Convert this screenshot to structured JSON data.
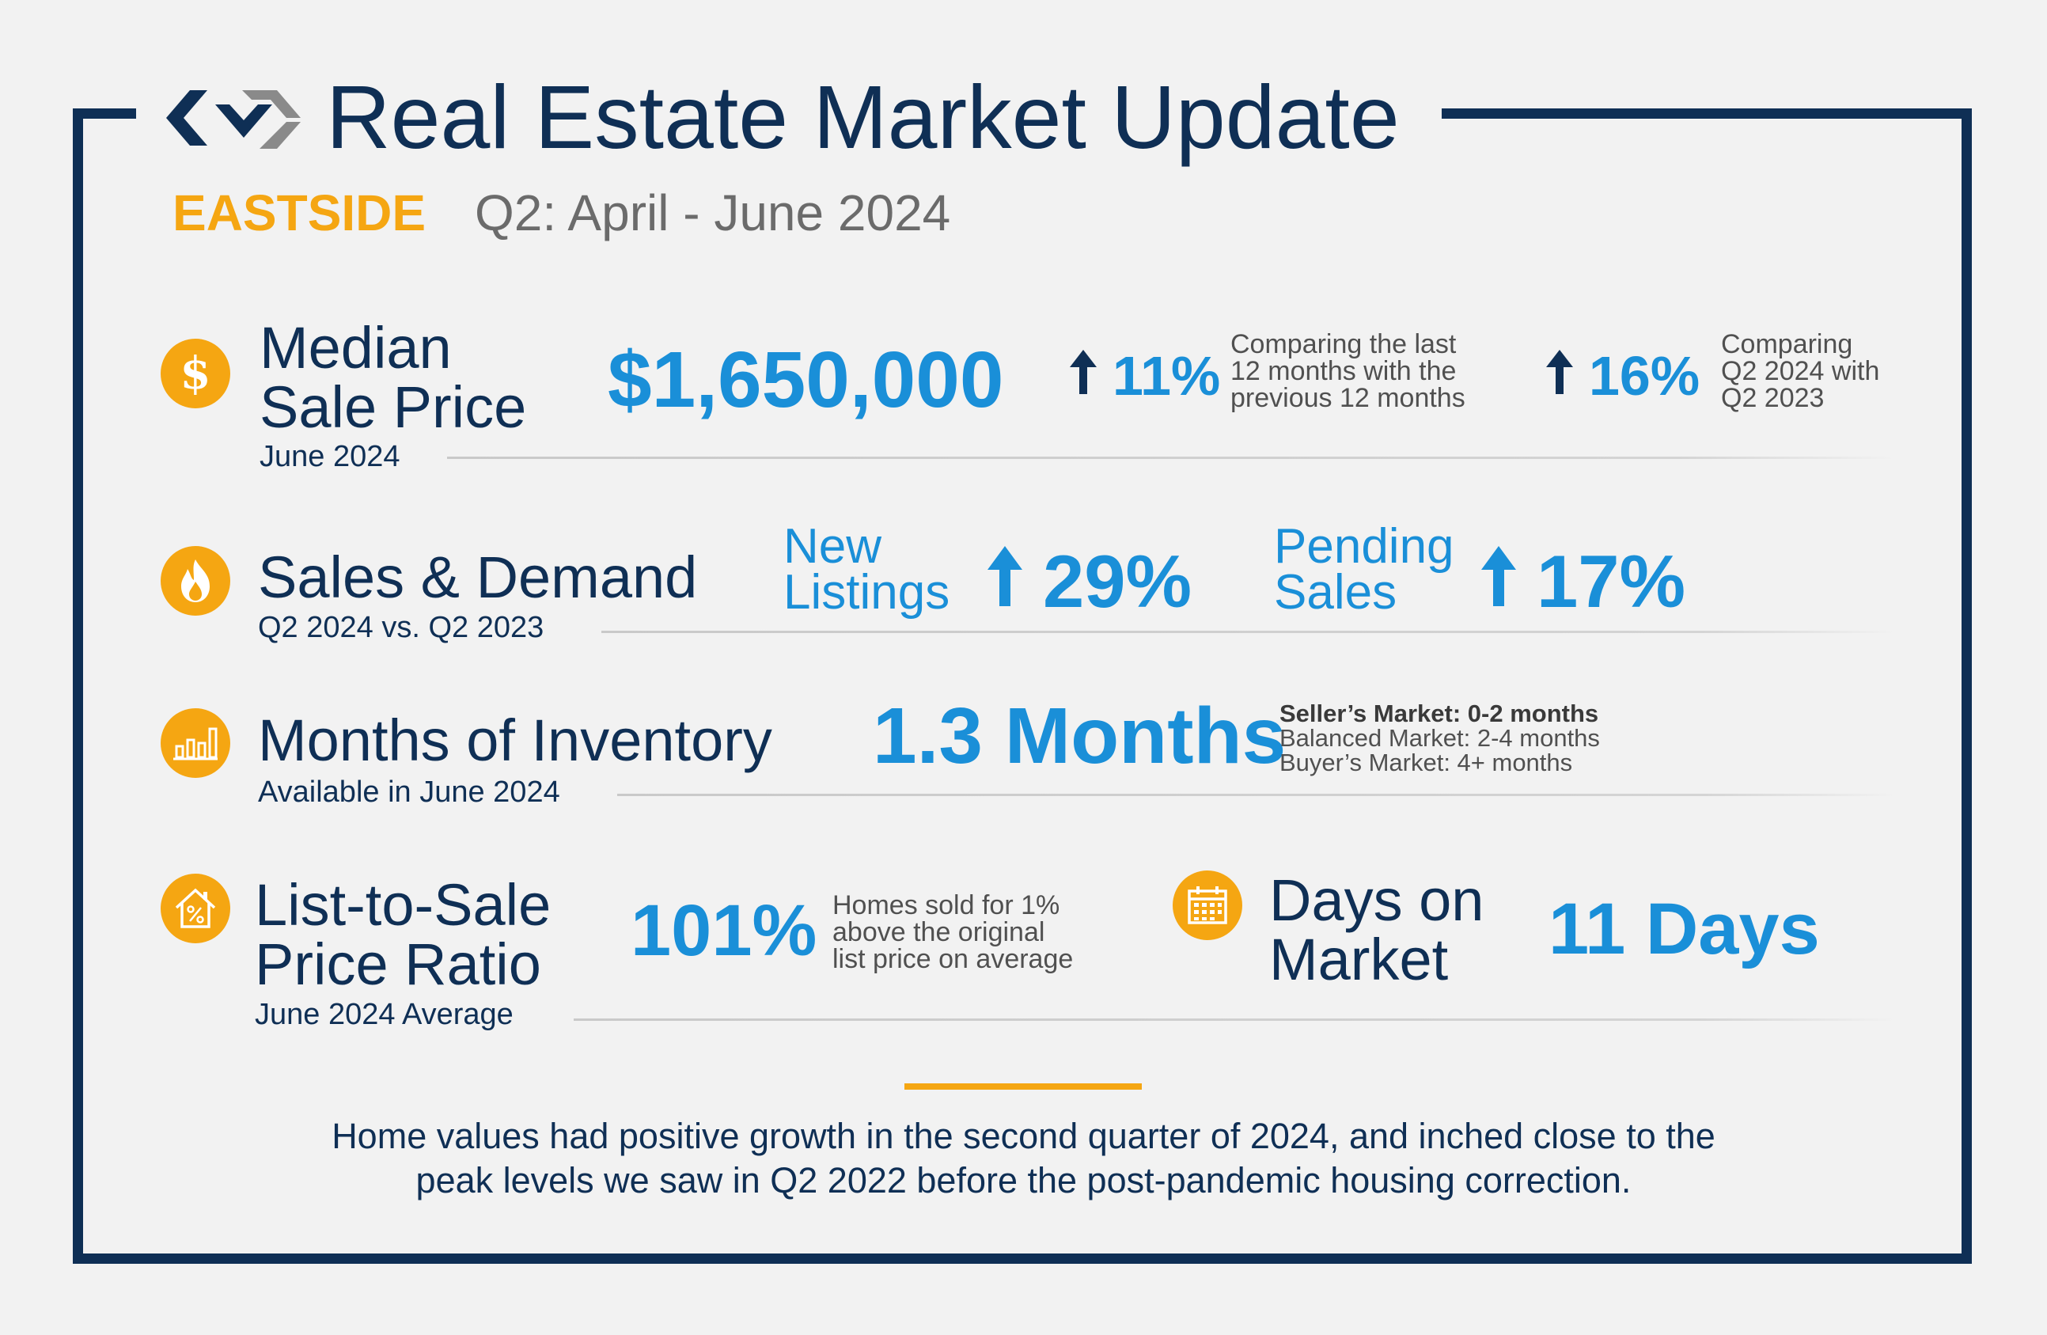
{
  "header": {
    "title": "Real Estate Market Update",
    "region": "EASTSIDE",
    "period": "Q2: April - June 2024"
  },
  "colors": {
    "navy": "#0f2f55",
    "blue": "#1a8fd8",
    "orange": "#f5a612",
    "gray_text": "#6b6b6b",
    "background": "#f2f2f2"
  },
  "median_price": {
    "icon": "dollar-icon",
    "title_line1": "Median",
    "title_line2": "Sale Price",
    "subtitle": "June 2024",
    "value": "$1,650,000",
    "change1": "11%",
    "change1_note_line1": "Comparing the last",
    "change1_note_line2": "12 months with the",
    "change1_note_line3": "previous 12 months",
    "change2": "16%",
    "change2_note_line1": "Comparing",
    "change2_note_line2": "Q2 2024 with",
    "change2_note_line3": "Q2 2023"
  },
  "sales_demand": {
    "icon": "flame-icon",
    "title": "Sales & Demand",
    "subtitle": "Q2 2024 vs. Q2 2023",
    "new_listings_line1": "New",
    "new_listings_line2": "Listings",
    "new_listings_change": "29%",
    "pending_line1": "Pending",
    "pending_line2": "Sales",
    "pending_change": "17%"
  },
  "inventory": {
    "icon": "bar-chart-icon",
    "title": "Months of Inventory",
    "subtitle": "Available in June 2024",
    "value": "1.3 Months",
    "legend_sellers": "Seller’s Market: 0-2 months",
    "legend_balanced": "Balanced Market: 2-4 months",
    "legend_buyers": "Buyer’s Market: 4+ months"
  },
  "list_to_sale": {
    "icon": "house-percent-icon",
    "title_line1": "List-to-Sale",
    "title_line2": "Price Ratio",
    "subtitle": "June 2024 Average",
    "value": "101%",
    "note_line1": "Homes sold for 1%",
    "note_line2": "above the original",
    "note_line3": "list price on average"
  },
  "days_on_market": {
    "icon": "calendar-icon",
    "title_line1": "Days on",
    "title_line2": "Market",
    "value": "11 Days"
  },
  "footer": {
    "line1": "Home values had positive growth in the second quarter of 2024, and inched close to the",
    "line2": "peak levels we saw in Q2 2022 before the post-pandemic housing correction."
  }
}
